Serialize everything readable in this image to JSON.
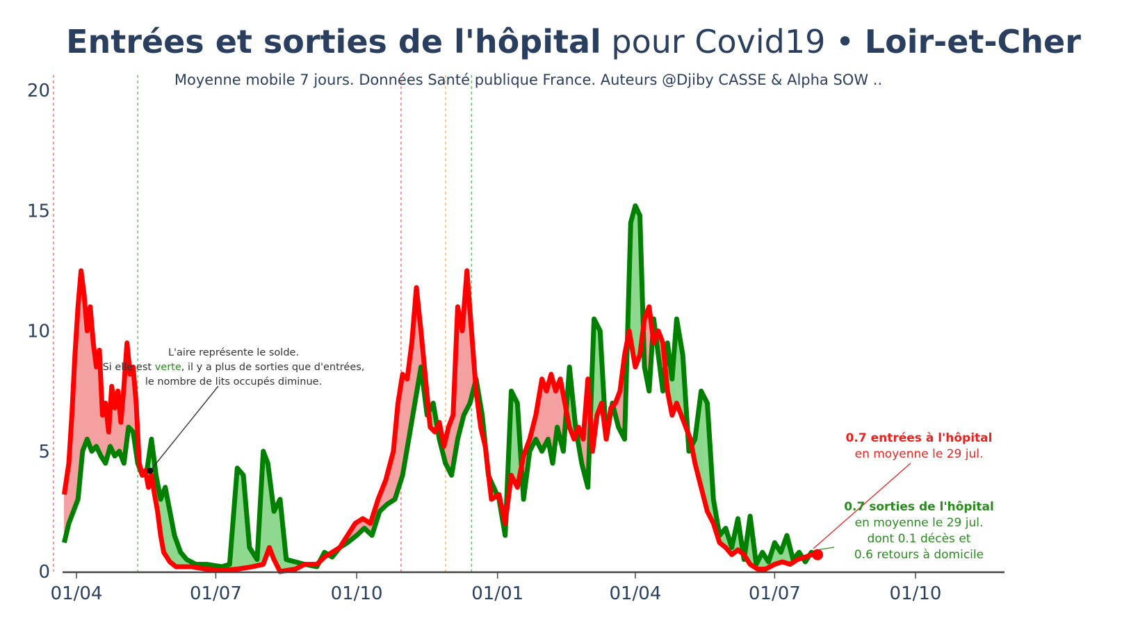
{
  "title": {
    "part1": "Entrées et sorties de l'hôpital",
    "part2": " pour Covid19 • ",
    "part3": "Loir-et-Cher"
  },
  "subtitle": "Moyenne mobile 7 jours. Données Santé publique France. Auteurs @Djiby CASSE & Alpha SOW ..",
  "colors": {
    "entries": "#ff0000",
    "exits": "#008000",
    "fill_positive_exits": "#8fd88f",
    "fill_positive_entries": "#f4a0a0",
    "text": "#2a3f5f"
  },
  "annotation_note": {
    "line1": "L'aire représente le solde.",
    "line2_a": "Si elle est ",
    "line2_b": "verte",
    "line2_c": ", il y a plus de sorties que d'entrées,",
    "line3": "le nombre de lits occupés diminue."
  },
  "annotation_entries": {
    "line1": "0.7 entrées à l'hôpital",
    "line2": "en moyenne le 29 jul."
  },
  "annotation_exits": {
    "line1": "0.7 sorties de l'hôpital",
    "line2": "en moyenne le 29 jul.",
    "line3": "dont 0.1 décès et",
    "line4": "0.6 retours à domicile"
  },
  "chart_data": {
    "type": "line",
    "title": "Entrées et sorties de l'hôpital pour Covid19 • Loir-et-Cher",
    "subtitle": "Moyenne mobile 7 jours. Données Santé publique France. Auteurs @Djiby CASSE & Alpha SOW ..",
    "x_tick_labels": [
      "01/04",
      "01/07",
      "01/10",
      "01/01",
      "01/04",
      "01/07",
      "01/10"
    ],
    "x_tick_dates": [
      "2020-04-01",
      "2020-07-01",
      "2020-10-01",
      "2021-01-01",
      "2021-04-01",
      "2021-07-01",
      "2021-10-01"
    ],
    "x_range": [
      "2020-03-18",
      "2021-12-15"
    ],
    "ylim": [
      0,
      20.5
    ],
    "y_ticks": [
      0,
      5,
      10,
      15,
      20
    ],
    "vertical_lines": [
      {
        "date": "2020-03-17",
        "color": "red"
      },
      {
        "date": "2020-05-11",
        "color": "green"
      },
      {
        "date": "2020-10-30",
        "color": "red"
      },
      {
        "date": "2020-11-28",
        "color": "orange"
      },
      {
        "date": "2020-12-15",
        "color": "green"
      }
    ],
    "series": [
      {
        "name": "entrées",
        "color": "#ff0000",
        "points": [
          [
            "2020-03-24",
            3.2
          ],
          [
            "2020-03-27",
            4.5
          ],
          [
            "2020-03-29",
            6.5
          ],
          [
            "2020-03-31",
            9.0
          ],
          [
            "2020-04-02",
            11.0
          ],
          [
            "2020-04-04",
            12.5
          ],
          [
            "2020-04-06",
            11.5
          ],
          [
            "2020-04-08",
            10.0
          ],
          [
            "2020-04-10",
            11.0
          ],
          [
            "2020-04-12",
            9.5
          ],
          [
            "2020-04-14",
            8.5
          ],
          [
            "2020-04-16",
            9.2
          ],
          [
            "2020-04-18",
            6.5
          ],
          [
            "2020-04-20",
            7.0
          ],
          [
            "2020-04-22",
            5.8
          ],
          [
            "2020-04-24",
            7.7
          ],
          [
            "2020-04-26",
            6.8
          ],
          [
            "2020-04-28",
            7.5
          ],
          [
            "2020-04-30",
            6.2
          ],
          [
            "2020-05-02",
            7.7
          ],
          [
            "2020-05-04",
            9.5
          ],
          [
            "2020-05-06",
            8.2
          ],
          [
            "2020-05-08",
            8.5
          ],
          [
            "2020-05-10",
            7.0
          ],
          [
            "2020-05-12",
            4.5
          ],
          [
            "2020-05-14",
            4.0
          ],
          [
            "2020-05-16",
            4.2
          ],
          [
            "2020-05-18",
            3.5
          ],
          [
            "2020-05-20",
            4.0
          ],
          [
            "2020-05-22",
            3.2
          ],
          [
            "2020-05-24",
            2.5
          ],
          [
            "2020-05-26",
            1.5
          ],
          [
            "2020-05-28",
            0.8
          ],
          [
            "2020-06-01",
            0.4
          ],
          [
            "2020-06-05",
            0.2
          ],
          [
            "2020-06-15",
            0.2
          ],
          [
            "2020-06-25",
            0.1
          ],
          [
            "2020-07-05",
            0.05
          ],
          [
            "2020-07-15",
            0.1
          ],
          [
            "2020-07-25",
            0.2
          ],
          [
            "2020-08-01",
            0.3
          ],
          [
            "2020-08-05",
            1.0
          ],
          [
            "2020-08-08",
            0.5
          ],
          [
            "2020-08-12",
            0.0
          ],
          [
            "2020-08-22",
            0.1
          ],
          [
            "2020-08-28",
            0.3
          ],
          [
            "2020-09-05",
            0.3
          ],
          [
            "2020-09-10",
            0.6
          ],
          [
            "2020-09-15",
            0.8
          ],
          [
            "2020-09-20",
            1.0
          ],
          [
            "2020-09-25",
            1.5
          ],
          [
            "2020-09-30",
            2.0
          ],
          [
            "2020-10-05",
            2.2
          ],
          [
            "2020-10-10",
            2.0
          ],
          [
            "2020-10-15",
            3.0
          ],
          [
            "2020-10-20",
            3.8
          ],
          [
            "2020-10-25",
            5.0
          ],
          [
            "2020-10-28",
            7.0
          ],
          [
            "2020-10-31",
            8.2
          ],
          [
            "2020-11-03",
            8.0
          ],
          [
            "2020-11-06",
            9.5
          ],
          [
            "2020-11-09",
            11.8
          ],
          [
            "2020-11-12",
            10.0
          ],
          [
            "2020-11-15",
            8.0
          ],
          [
            "2020-11-18",
            6.0
          ],
          [
            "2020-11-21",
            5.8
          ],
          [
            "2020-11-24",
            6.2
          ],
          [
            "2020-11-27",
            5.2
          ],
          [
            "2020-11-30",
            6.0
          ],
          [
            "2020-12-03",
            6.5
          ],
          [
            "2020-12-06",
            11.0
          ],
          [
            "2020-12-09",
            10.0
          ],
          [
            "2020-12-12",
            12.5
          ],
          [
            "2020-12-15",
            10.0
          ],
          [
            "2020-12-18",
            7.5
          ],
          [
            "2020-12-21",
            6.0
          ],
          [
            "2020-12-24",
            5.2
          ],
          [
            "2020-12-28",
            3.0
          ],
          [
            "2021-01-02",
            3.2
          ],
          [
            "2021-01-06",
            2.0
          ],
          [
            "2021-01-10",
            4.0
          ],
          [
            "2021-01-14",
            3.5
          ],
          [
            "2021-01-18",
            4.8
          ],
          [
            "2021-01-22",
            5.5
          ],
          [
            "2021-01-26",
            6.5
          ],
          [
            "2021-01-30",
            8.0
          ],
          [
            "2021-02-02",
            7.5
          ],
          [
            "2021-02-05",
            8.2
          ],
          [
            "2021-02-08",
            7.5
          ],
          [
            "2021-02-11",
            8.0
          ],
          [
            "2021-02-14",
            7.0
          ],
          [
            "2021-02-17",
            6.0
          ],
          [
            "2021-02-20",
            5.5
          ],
          [
            "2021-02-23",
            6.0
          ],
          [
            "2021-02-26",
            5.5
          ],
          [
            "2021-03-01",
            8.0
          ],
          [
            "2021-03-04",
            5.0
          ],
          [
            "2021-03-07",
            6.5
          ],
          [
            "2021-03-10",
            7.0
          ],
          [
            "2021-03-13",
            5.5
          ],
          [
            "2021-03-16",
            6.8
          ],
          [
            "2021-03-19",
            7.0
          ],
          [
            "2021-03-22",
            7.5
          ],
          [
            "2021-03-25",
            9.0
          ],
          [
            "2021-03-28",
            10.0
          ],
          [
            "2021-04-01",
            8.5
          ],
          [
            "2021-04-04",
            9.0
          ],
          [
            "2021-04-07",
            10.5
          ],
          [
            "2021-04-10",
            11.0
          ],
          [
            "2021-04-13",
            9.5
          ],
          [
            "2021-04-16",
            10.0
          ],
          [
            "2021-04-19",
            9.5
          ],
          [
            "2021-04-22",
            7.5
          ],
          [
            "2021-04-25",
            6.5
          ],
          [
            "2021-04-28",
            7.0
          ],
          [
            "2021-05-01",
            6.5
          ],
          [
            "2021-05-04",
            6.0
          ],
          [
            "2021-05-07",
            5.5
          ],
          [
            "2021-05-10",
            4.5
          ],
          [
            "2021-05-14",
            3.5
          ],
          [
            "2021-05-18",
            2.5
          ],
          [
            "2021-05-22",
            2.0
          ],
          [
            "2021-05-26",
            1.2
          ],
          [
            "2021-05-30",
            1.0
          ],
          [
            "2021-06-03",
            0.7
          ],
          [
            "2021-06-07",
            0.9
          ],
          [
            "2021-06-11",
            0.7
          ],
          [
            "2021-06-15",
            0.3
          ],
          [
            "2021-06-20",
            0.1
          ],
          [
            "2021-06-25",
            0.1
          ],
          [
            "2021-07-01",
            0.3
          ],
          [
            "2021-07-06",
            0.4
          ],
          [
            "2021-07-11",
            0.3
          ],
          [
            "2021-07-16",
            0.5
          ],
          [
            "2021-07-21",
            0.6
          ],
          [
            "2021-07-25",
            0.7
          ],
          [
            "2021-07-29",
            0.7
          ]
        ]
      },
      {
        "name": "sorties",
        "color": "#008000",
        "points": [
          [
            "2020-03-24",
            1.2
          ],
          [
            "2020-03-27",
            2.0
          ],
          [
            "2020-03-30",
            2.5
          ],
          [
            "2020-04-02",
            3.0
          ],
          [
            "2020-04-05",
            5.0
          ],
          [
            "2020-04-08",
            5.5
          ],
          [
            "2020-04-11",
            5.0
          ],
          [
            "2020-04-14",
            5.2
          ],
          [
            "2020-04-17",
            4.8
          ],
          [
            "2020-04-20",
            4.5
          ],
          [
            "2020-04-23",
            5.2
          ],
          [
            "2020-04-26",
            4.8
          ],
          [
            "2020-04-29",
            5.0
          ],
          [
            "2020-05-02",
            4.5
          ],
          [
            "2020-05-05",
            6.0
          ],
          [
            "2020-05-08",
            5.8
          ],
          [
            "2020-05-11",
            4.5
          ],
          [
            "2020-05-14",
            4.0
          ],
          [
            "2020-05-17",
            4.2
          ],
          [
            "2020-05-20",
            5.5
          ],
          [
            "2020-05-23",
            4.0
          ],
          [
            "2020-05-26",
            3.0
          ],
          [
            "2020-05-29",
            3.5
          ],
          [
            "2020-06-01",
            2.5
          ],
          [
            "2020-06-04",
            1.5
          ],
          [
            "2020-06-08",
            0.8
          ],
          [
            "2020-06-12",
            0.5
          ],
          [
            "2020-06-18",
            0.3
          ],
          [
            "2020-06-25",
            0.3
          ],
          [
            "2020-07-05",
            0.2
          ],
          [
            "2020-07-10",
            0.3
          ],
          [
            "2020-07-15",
            4.3
          ],
          [
            "2020-07-19",
            4.0
          ],
          [
            "2020-07-23",
            1.0
          ],
          [
            "2020-07-28",
            0.5
          ],
          [
            "2020-08-01",
            5.0
          ],
          [
            "2020-08-04",
            4.5
          ],
          [
            "2020-08-08",
            2.5
          ],
          [
            "2020-08-12",
            3.0
          ],
          [
            "2020-08-16",
            0.5
          ],
          [
            "2020-08-22",
            0.4
          ],
          [
            "2020-08-28",
            0.3
          ],
          [
            "2020-09-05",
            0.2
          ],
          [
            "2020-09-10",
            0.8
          ],
          [
            "2020-09-15",
            0.6
          ],
          [
            "2020-09-20",
            1.0
          ],
          [
            "2020-09-25",
            1.2
          ],
          [
            "2020-10-01",
            1.5
          ],
          [
            "2020-10-06",
            1.8
          ],
          [
            "2020-10-11",
            1.5
          ],
          [
            "2020-10-16",
            2.5
          ],
          [
            "2020-10-21",
            2.8
          ],
          [
            "2020-10-26",
            3.0
          ],
          [
            "2020-10-31",
            4.0
          ],
          [
            "2020-11-04",
            5.5
          ],
          [
            "2020-11-08",
            7.0
          ],
          [
            "2020-11-12",
            8.5
          ],
          [
            "2020-11-16",
            6.5
          ],
          [
            "2020-11-20",
            7.0
          ],
          [
            "2020-11-24",
            5.5
          ],
          [
            "2020-11-28",
            4.5
          ],
          [
            "2020-12-02",
            4.0
          ],
          [
            "2020-12-06",
            5.5
          ],
          [
            "2020-12-10",
            6.5
          ],
          [
            "2020-12-14",
            7.0
          ],
          [
            "2020-12-18",
            8.0
          ],
          [
            "2020-12-22",
            6.5
          ],
          [
            "2020-12-26",
            4.0
          ],
          [
            "2021-01-02",
            3.0
          ],
          [
            "2021-01-06",
            1.5
          ],
          [
            "2021-01-10",
            7.5
          ],
          [
            "2021-01-14",
            7.0
          ],
          [
            "2021-01-18",
            3.0
          ],
          [
            "2021-01-22",
            5.0
          ],
          [
            "2021-01-26",
            5.5
          ],
          [
            "2021-01-30",
            5.0
          ],
          [
            "2021-02-03",
            5.5
          ],
          [
            "2021-02-06",
            4.5
          ],
          [
            "2021-02-09",
            6.0
          ],
          [
            "2021-02-13",
            5.0
          ],
          [
            "2021-02-17",
            8.5
          ],
          [
            "2021-02-21",
            6.0
          ],
          [
            "2021-02-25",
            4.5
          ],
          [
            "2021-03-01",
            3.5
          ],
          [
            "2021-03-05",
            10.5
          ],
          [
            "2021-03-09",
            10.0
          ],
          [
            "2021-03-13",
            5.5
          ],
          [
            "2021-03-17",
            7.0
          ],
          [
            "2021-03-21",
            6.0
          ],
          [
            "2021-03-25",
            5.5
          ],
          [
            "2021-03-29",
            14.5
          ],
          [
            "2021-04-01",
            15.2
          ],
          [
            "2021-04-04",
            14.8
          ],
          [
            "2021-04-07",
            8.5
          ],
          [
            "2021-04-10",
            7.5
          ],
          [
            "2021-04-13",
            10.5
          ],
          [
            "2021-04-16",
            9.0
          ],
          [
            "2021-04-19",
            7.5
          ],
          [
            "2021-04-22",
            9.5
          ],
          [
            "2021-04-25",
            8.0
          ],
          [
            "2021-04-28",
            10.5
          ],
          [
            "2021-05-02",
            9.0
          ],
          [
            "2021-05-06",
            5.0
          ],
          [
            "2021-05-10",
            5.5
          ],
          [
            "2021-05-14",
            7.5
          ],
          [
            "2021-05-18",
            7.0
          ],
          [
            "2021-05-22",
            3.0
          ],
          [
            "2021-05-26",
            1.5
          ],
          [
            "2021-05-30",
            1.8
          ],
          [
            "2021-06-03",
            1.0
          ],
          [
            "2021-06-07",
            2.2
          ],
          [
            "2021-06-11",
            0.5
          ],
          [
            "2021-06-15",
            2.3
          ],
          [
            "2021-06-19",
            0.3
          ],
          [
            "2021-06-23",
            0.8
          ],
          [
            "2021-06-27",
            0.4
          ],
          [
            "2021-07-01",
            1.2
          ],
          [
            "2021-07-05",
            0.8
          ],
          [
            "2021-07-09",
            1.5
          ],
          [
            "2021-07-13",
            0.5
          ],
          [
            "2021-07-17",
            0.8
          ],
          [
            "2021-07-21",
            0.4
          ],
          [
            "2021-07-25",
            0.8
          ],
          [
            "2021-07-29",
            0.7
          ]
        ]
      }
    ]
  }
}
